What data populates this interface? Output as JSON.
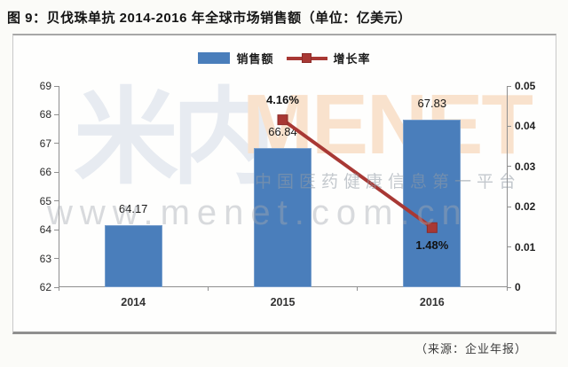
{
  "page": {
    "title": "图 9：贝伐珠单抗 2014-2016 年全球市场销售额（单位：亿美元）",
    "source_note": "（来源：企业年报）"
  },
  "legend": {
    "items": [
      {
        "label": "销售额",
        "swatch": "bar-swatch",
        "color": "#4a7ebb"
      },
      {
        "label": "增长率",
        "swatch": "line-swatch",
        "color": "#a83834"
      }
    ]
  },
  "watermark": {
    "logo_text": "米内",
    "brand_text": "MENET",
    "slogan": "中国医药健康信息第一平台",
    "url": "www.menet.com.cn"
  },
  "colors": {
    "bar_blue": "#4a7ebb",
    "line_red": "#a83834",
    "marker_border": "#8c2b28"
  },
  "chart_data": {
    "type": "bar",
    "subtype": "bar-with-line-combo",
    "title": "贝伐珠单抗 2014-2016 年全球市场销售额（单位：亿美元）",
    "categories": [
      "2014",
      "2015",
      "2016"
    ],
    "series": [
      {
        "name": "销售额",
        "type": "bar",
        "axis": "left",
        "color": "#4a7ebb",
        "values": [
          64.17,
          66.84,
          67.83
        ],
        "labels": [
          "64.17",
          "66.84",
          "67.83"
        ]
      },
      {
        "name": "增长率",
        "type": "line",
        "axis": "right",
        "color": "#a83834",
        "values": [
          null,
          0.0416,
          0.0148
        ],
        "labels": [
          null,
          "4.16%",
          "1.48%"
        ],
        "label_positions": [
          null,
          "above",
          "below"
        ]
      }
    ],
    "left_axis": {
      "min": 62,
      "max": 69,
      "tick_step": 1,
      "ticks": [
        "69",
        "68",
        "67",
        "66",
        "65",
        "64",
        "63",
        "62"
      ]
    },
    "right_axis": {
      "min": 0,
      "max": 0.05,
      "tick_step": 0.01,
      "ticks": [
        "0.05",
        "0.04",
        "0.03",
        "0.02",
        "0.01",
        "0"
      ]
    },
    "grid": false,
    "legend_position": "top-center"
  }
}
